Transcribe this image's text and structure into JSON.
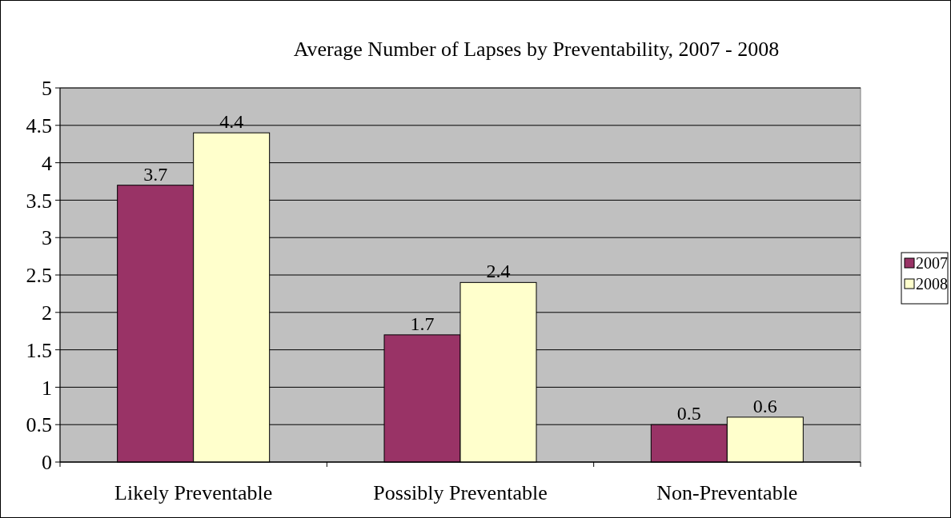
{
  "chart_data": {
    "type": "bar",
    "title": "Average Number of Lapses by Preventability, 2007 - 2008",
    "categories": [
      "Likely Preventable",
      "Possibly Preventable",
      "Non-Preventable"
    ],
    "series": [
      {
        "name": "2007",
        "color": "#993366",
        "values": [
          3.7,
          1.7,
          0.5
        ]
      },
      {
        "name": "2008",
        "color": "#ffffcc",
        "values": [
          4.4,
          2.4,
          0.6
        ]
      }
    ],
    "ylim": [
      0,
      5
    ],
    "yticks": [
      0,
      0.5,
      1,
      1.5,
      2,
      2.5,
      3,
      3.5,
      4,
      4.5,
      5
    ],
    "grid": "y",
    "data_labels": true,
    "legend": "right"
  }
}
